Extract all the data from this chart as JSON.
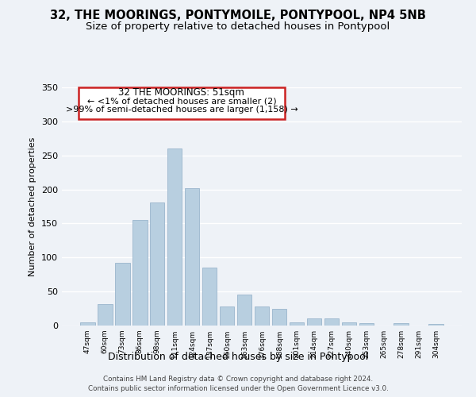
{
  "title": "32, THE MOORINGS, PONTYMOILE, PONTYPOOL, NP4 5NB",
  "subtitle": "Size of property relative to detached houses in Pontypool",
  "xlabel": "Distribution of detached houses by size in Pontypool",
  "ylabel": "Number of detached properties",
  "bar_color": "#b8cfe0",
  "bar_edge_color": "#9ab5cc",
  "categories": [
    "47sqm",
    "60sqm",
    "73sqm",
    "86sqm",
    "98sqm",
    "111sqm",
    "124sqm",
    "137sqm",
    "150sqm",
    "163sqm",
    "176sqm",
    "188sqm",
    "201sqm",
    "214sqm",
    "227sqm",
    "240sqm",
    "253sqm",
    "265sqm",
    "278sqm",
    "291sqm",
    "304sqm"
  ],
  "values": [
    5,
    31,
    92,
    155,
    181,
    260,
    202,
    85,
    28,
    46,
    28,
    24,
    5,
    10,
    10,
    5,
    3,
    0,
    4,
    0,
    2
  ],
  "ylim": [
    0,
    350
  ],
  "yticks": [
    0,
    50,
    100,
    150,
    200,
    250,
    300,
    350
  ],
  "annotation_title": "32 THE MOORINGS: 51sqm",
  "annotation_line2": "← <1% of detached houses are smaller (2)",
  "annotation_line3": ">99% of semi-detached houses are larger (1,158) →",
  "annotation_box_color": "#ffffff",
  "annotation_box_edge": "#cc2222",
  "footer_line1": "Contains HM Land Registry data © Crown copyright and database right 2024.",
  "footer_line2": "Contains public sector information licensed under the Open Government Licence v3.0.",
  "background_color": "#eef2f7",
  "grid_color": "#ffffff",
  "title_fontsize": 10.5,
  "subtitle_fontsize": 9.5
}
